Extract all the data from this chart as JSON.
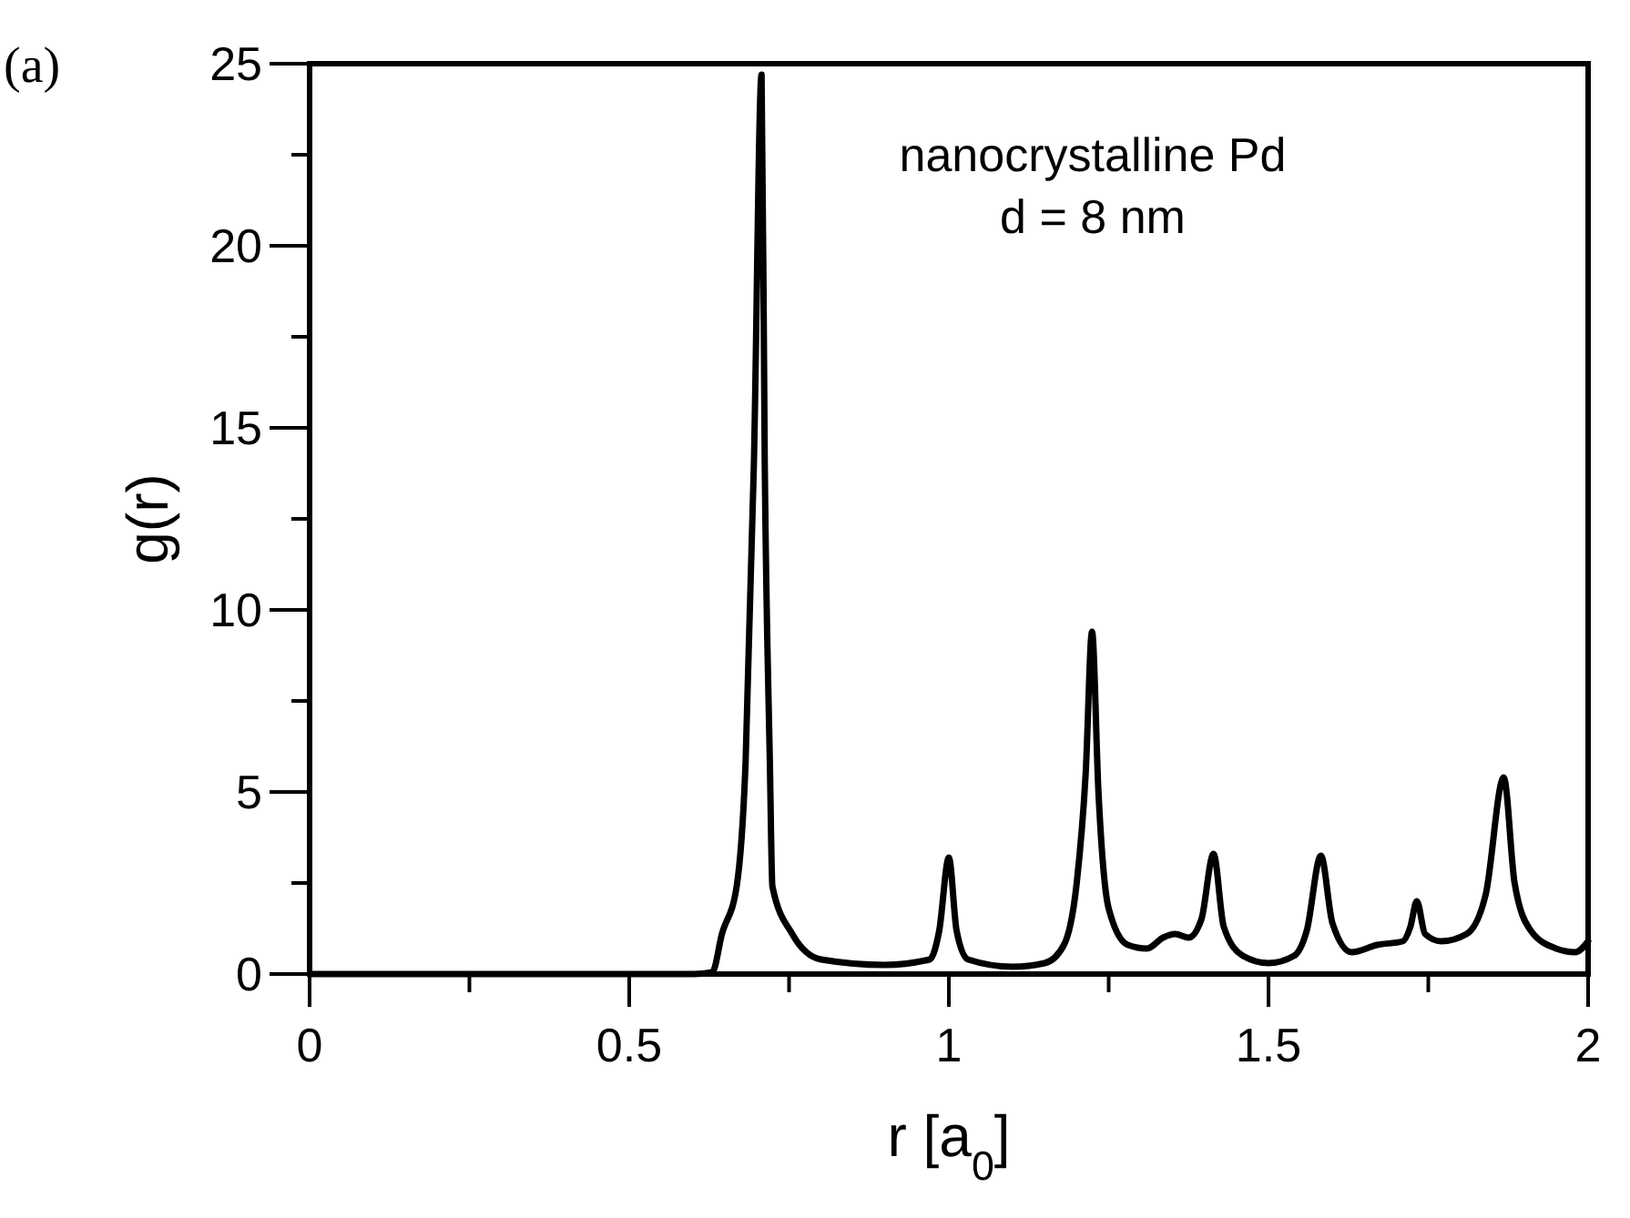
{
  "chart_data": {
    "type": "line",
    "xlabel": "r [a$_{0}$]",
    "ylabel": "g(r)",
    "annotations": [
      "(a)",
      "nanocrystalline Pd",
      "d = 8 nm"
    ],
    "xlim": [
      0,
      2
    ],
    "ylim": [
      0,
      25
    ],
    "xticks": [
      0,
      {
        "value": 0.25,
        "label": null
      },
      0.5,
      {
        "value": 0.75,
        "label": null
      },
      1,
      {
        "value": 1.25,
        "label": null
      },
      1.5,
      {
        "value": 1.75,
        "label": null
      },
      2
    ],
    "yticks": [
      0,
      {
        "value": 2.5,
        "label": null
      },
      5,
      {
        "value": 7.5,
        "label": null
      },
      10,
      {
        "value": 12.5,
        "label": null
      },
      15,
      {
        "value": 17.5,
        "label": null
      },
      20,
      {
        "value": 22.5,
        "label": null
      },
      25
    ],
    "grid": false,
    "marker": "none",
    "line_style": "solid",
    "series": [
      {
        "color": "#000000",
        "x": [
          0,
          0.6,
          0.63,
          0.645,
          0.668,
          0.682,
          0.695,
          0.707,
          0.712,
          0.72,
          0.724,
          0.755,
          0.8,
          0.9,
          0.97,
          0.985,
          1.0,
          1.012,
          1.03,
          1.1,
          1.15,
          1.18,
          1.2,
          1.214,
          1.224,
          1.234,
          1.25,
          1.28,
          1.31,
          1.335,
          1.354,
          1.375,
          1.395,
          1.414,
          1.43,
          1.46,
          1.5,
          1.54,
          1.56,
          1.582,
          1.6,
          1.63,
          1.67,
          1.71,
          1.722,
          1.732,
          1.745,
          1.77,
          1.81,
          1.84,
          1.868,
          1.885,
          1.91,
          1.95,
          1.98,
          2.0
        ],
        "values": [
          0,
          0,
          0.05,
          1.1,
          2.4,
          5.8,
          14,
          24.7,
          14,
          5.8,
          2.4,
          1.1,
          0.4,
          0.25,
          0.4,
          1.2,
          3.2,
          1.2,
          0.4,
          0.2,
          0.3,
          0.8,
          2.5,
          5.5,
          9.4,
          5,
          1.8,
          0.8,
          0.7,
          1.0,
          1.1,
          1.0,
          1.5,
          3.3,
          1.3,
          0.5,
          0.3,
          0.5,
          1.2,
          3.25,
          1.4,
          0.6,
          0.8,
          0.9,
          1.3,
          2.0,
          1.1,
          0.9,
          1.1,
          2.2,
          5.4,
          2.5,
          1.2,
          0.7,
          0.6,
          0.9
        ]
      }
    ]
  }
}
